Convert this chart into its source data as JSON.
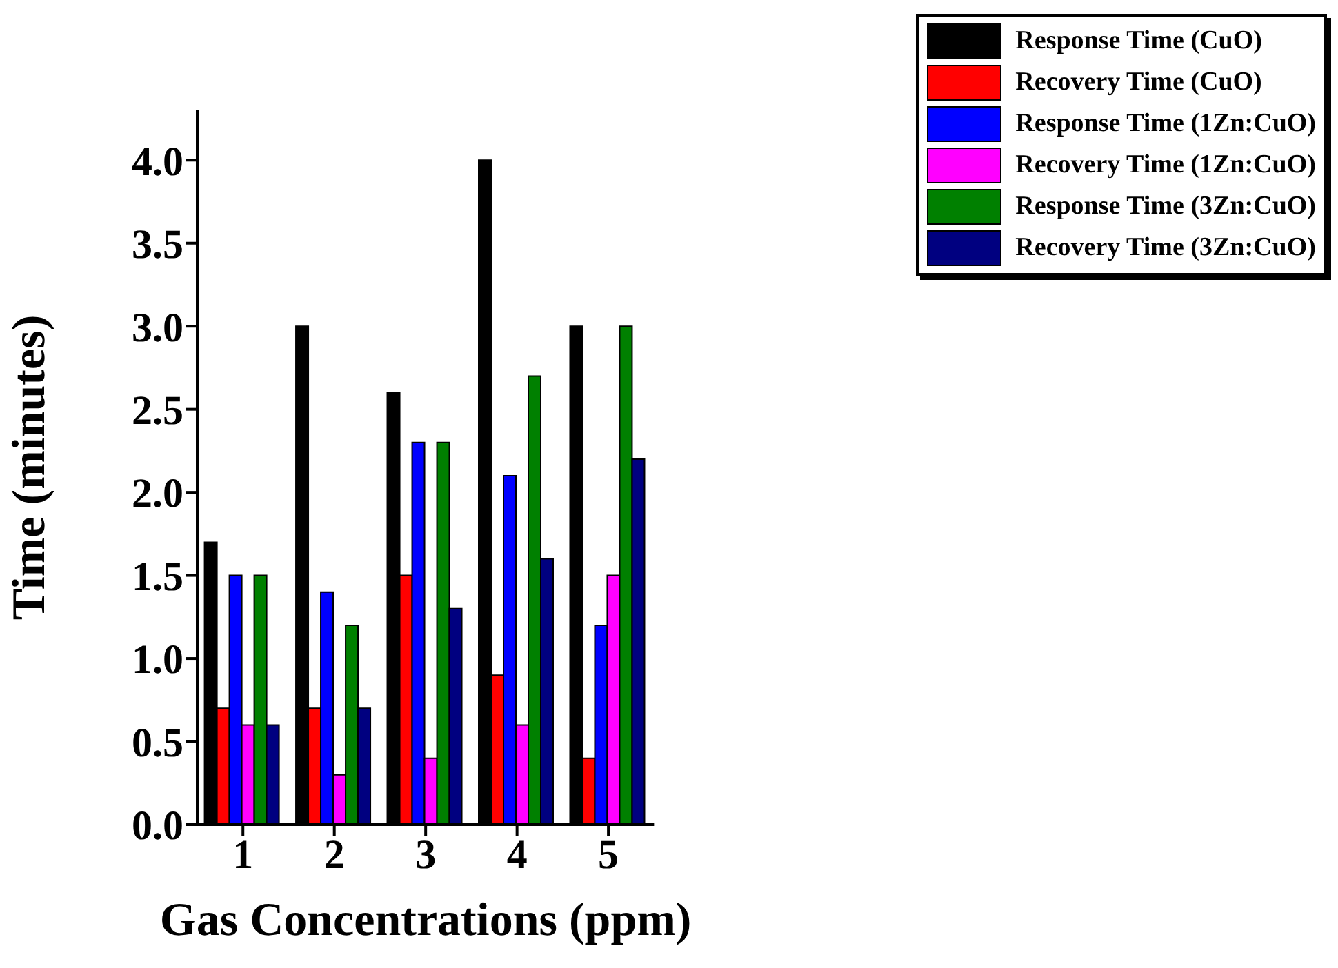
{
  "chart_data": {
    "type": "bar",
    "xlabel": "Gas Concentrations (ppm)",
    "ylabel": "Time (minutes)",
    "categories": [
      "1",
      "2",
      "3",
      "4",
      "5"
    ],
    "series": [
      {
        "name": "Response Time (CuO)",
        "color": "#000000",
        "values": [
          1.7,
          3.0,
          2.6,
          4.0,
          3.0
        ]
      },
      {
        "name": "Recovery Time (CuO)",
        "color": "#ff0000",
        "values": [
          0.7,
          0.7,
          1.5,
          0.9,
          0.4
        ]
      },
      {
        "name": "Response Time (1Zn:CuO)",
        "color": "#0000ff",
        "values": [
          1.5,
          1.4,
          2.3,
          2.1,
          1.2
        ]
      },
      {
        "name": "Recovery Time (1Zn:CuO)",
        "color": "#ff00ff",
        "values": [
          0.6,
          0.3,
          0.4,
          0.6,
          1.5
        ]
      },
      {
        "name": "Response Time (3Zn:CuO)",
        "color": "#008000",
        "values": [
          1.5,
          1.2,
          2.3,
          2.7,
          3.0
        ]
      },
      {
        "name": "Recovery Time (3Zn:CuO)",
        "color": "#000080",
        "values": [
          0.6,
          0.7,
          1.3,
          1.6,
          2.2
        ]
      }
    ],
    "ylim": [
      0,
      4.3
    ],
    "yticks": [
      {
        "value": 0,
        "label": "0.0"
      },
      {
        "value": 0.5,
        "label": "0.5"
      },
      {
        "value": 1,
        "label": "1.0"
      },
      {
        "value": 1.5,
        "label": "1.5"
      },
      {
        "value": 2,
        "label": "2.0"
      },
      {
        "value": 2.5,
        "label": "2.5"
      },
      {
        "value": 3,
        "label": "3.0"
      },
      {
        "value": 3.5,
        "label": "3.5"
      },
      {
        "value": 4,
        "label": "4.0"
      }
    ],
    "grid": false,
    "legend": "top right"
  }
}
